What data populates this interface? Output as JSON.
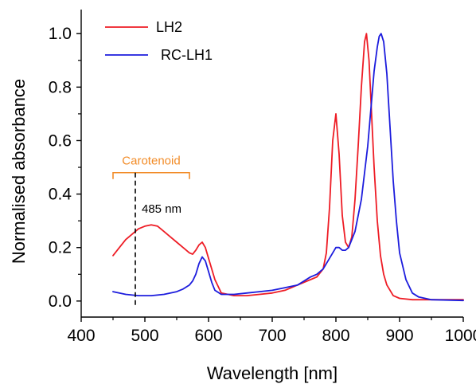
{
  "chart_data": {
    "type": "line",
    "xlabel": "Wavelength [nm]",
    "ylabel": "Normalised absorbance",
    "xlim": [
      400,
      1000
    ],
    "ylim": [
      -0.06,
      1.09
    ],
    "xticks": [
      400,
      500,
      600,
      700,
      800,
      900,
      1000
    ],
    "yticks": [
      0.0,
      0.2,
      0.4,
      0.6,
      0.8,
      1.0
    ],
    "ytick_labels": [
      "0.0",
      "0.2",
      "0.4",
      "0.6",
      "0.8",
      "1.0"
    ],
    "grid": false,
    "legend_position": "top-left",
    "series": [
      {
        "name": "LH2",
        "color": "#ee1c25",
        "x": [
          450,
          460,
          470,
          480,
          490,
          500,
          510,
          520,
          530,
          540,
          550,
          560,
          570,
          575,
          580,
          585,
          590,
          595,
          600,
          610,
          620,
          640,
          660,
          680,
          700,
          720,
          740,
          760,
          770,
          780,
          785,
          790,
          795,
          800,
          805,
          810,
          815,
          820,
          825,
          830,
          835,
          840,
          845,
          848,
          852,
          856,
          860,
          865,
          870,
          875,
          880,
          890,
          900,
          920,
          940,
          960,
          1000
        ],
        "y": [
          0.17,
          0.2,
          0.23,
          0.25,
          0.27,
          0.28,
          0.285,
          0.28,
          0.26,
          0.24,
          0.22,
          0.2,
          0.18,
          0.175,
          0.19,
          0.21,
          0.22,
          0.2,
          0.16,
          0.08,
          0.03,
          0.02,
          0.02,
          0.025,
          0.03,
          0.04,
          0.06,
          0.08,
          0.09,
          0.12,
          0.18,
          0.35,
          0.6,
          0.7,
          0.55,
          0.32,
          0.22,
          0.2,
          0.24,
          0.38,
          0.58,
          0.8,
          0.97,
          1.0,
          0.9,
          0.7,
          0.5,
          0.3,
          0.17,
          0.1,
          0.06,
          0.02,
          0.01,
          0.005,
          0.005,
          0.005,
          0.005
        ]
      },
      {
        "name": "RC-LH1",
        "color": "#1c1cdd",
        "x": [
          450,
          470,
          490,
          510,
          530,
          550,
          560,
          570,
          575,
          580,
          585,
          590,
          595,
          600,
          605,
          610,
          620,
          640,
          660,
          680,
          700,
          720,
          740,
          760,
          770,
          780,
          790,
          800,
          805,
          810,
          815,
          820,
          830,
          840,
          850,
          855,
          860,
          865,
          868,
          871,
          875,
          880,
          885,
          890,
          895,
          900,
          910,
          920,
          930,
          950,
          1000
        ],
        "y": [
          0.035,
          0.025,
          0.02,
          0.02,
          0.025,
          0.035,
          0.045,
          0.06,
          0.075,
          0.1,
          0.14,
          0.165,
          0.15,
          0.11,
          0.07,
          0.04,
          0.025,
          0.025,
          0.03,
          0.035,
          0.04,
          0.05,
          0.06,
          0.09,
          0.1,
          0.12,
          0.16,
          0.2,
          0.2,
          0.19,
          0.19,
          0.2,
          0.26,
          0.38,
          0.58,
          0.72,
          0.86,
          0.95,
          0.99,
          1.0,
          0.97,
          0.85,
          0.65,
          0.45,
          0.3,
          0.18,
          0.08,
          0.03,
          0.015,
          0.005,
          0.002
        ]
      }
    ],
    "annotations": [
      {
        "text": "Carotenoid",
        "color": "#f28c28",
        "x_start": 450,
        "x_end": 570,
        "y": 0.48
      },
      {
        "text": "485 nm",
        "x": 485,
        "y_range": [
          -0.02,
          0.48
        ],
        "line_style": "dashed",
        "color": "#000000"
      }
    ]
  }
}
